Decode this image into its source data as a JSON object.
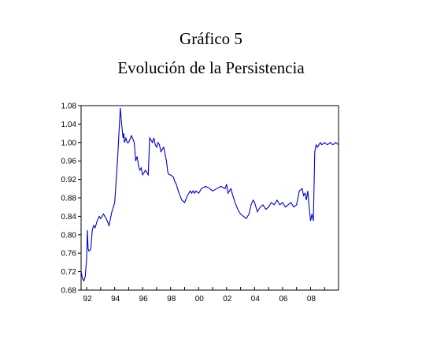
{
  "chart_data": {
    "type": "line",
    "title": "Gráfico 5",
    "subtitle": "Evolución de la Persistencia",
    "xlabel": "",
    "ylabel": "",
    "xlim": [
      1991.6,
      2010.0
    ],
    "ylim": [
      0.68,
      1.08
    ],
    "x_tick_labels": [
      "92",
      "94",
      "96",
      "98",
      "00",
      "02",
      "04",
      "06",
      "08"
    ],
    "x_tick_values": [
      1992,
      1994,
      1996,
      1998,
      2000,
      2002,
      2004,
      2006,
      2008
    ],
    "y_tick_labels": [
      "0.68",
      "0.72",
      "0.76",
      "0.80",
      "0.84",
      "0.88",
      "0.92",
      "0.96",
      "1.00",
      "1.04",
      "1.08"
    ],
    "y_tick_values": [
      0.68,
      0.72,
      0.76,
      0.8,
      0.84,
      0.88,
      0.92,
      0.96,
      1.0,
      1.04,
      1.08
    ],
    "grid": false,
    "line_color": "#0000cc",
    "series": [
      {
        "x": [
          1991.6,
          1991.7,
          1991.8,
          1991.9,
          1992.0,
          1992.05,
          1992.1,
          1992.15,
          1992.2,
          1992.3,
          1992.4,
          1992.5,
          1992.6,
          1992.75,
          1992.9,
          1993.0,
          1993.2,
          1993.4,
          1993.6,
          1993.8,
          1994.0,
          1994.2,
          1994.4,
          1994.5,
          1994.6,
          1994.65,
          1994.7,
          1994.75,
          1994.8,
          1994.9,
          1995.0,
          1995.2,
          1995.4,
          1995.5,
          1995.6,
          1995.7,
          1995.8,
          1995.9,
          1996.0,
          1996.2,
          1996.3,
          1996.4,
          1996.5,
          1996.6,
          1996.7,
          1996.8,
          1996.9,
          1997.0,
          1997.1,
          1997.2,
          1997.3,
          1997.4,
          1997.5,
          1997.7,
          1997.8,
          1997.9,
          1998.0,
          1998.2,
          1998.3,
          1998.4,
          1998.6,
          1998.8,
          1999.0,
          1999.2,
          1999.4,
          1999.5,
          1999.6,
          1999.7,
          1999.8,
          2000.0,
          2000.2,
          2000.5,
          2000.8,
          2001.0,
          2001.3,
          2001.6,
          2001.9,
          2002.0,
          2002.1,
          2002.2,
          2002.3,
          2002.4,
          2002.6,
          2002.8,
          2003.0,
          2003.2,
          2003.4,
          2003.6,
          2003.75,
          2003.9,
          2004.0,
          2004.1,
          2004.2,
          2004.3,
          2004.4,
          2004.6,
          2004.8,
          2005.0,
          2005.2,
          2005.4,
          2005.6,
          2005.8,
          2006.0,
          2006.2,
          2006.4,
          2006.6,
          2006.8,
          2007.0,
          2007.2,
          2007.4,
          2007.5,
          2007.6,
          2007.7,
          2007.8,
          2007.9,
          2008.0,
          2008.1,
          2008.2,
          2008.3,
          2008.4,
          2008.5,
          2008.6,
          2008.7,
          2008.8,
          2009.0,
          2009.2,
          2009.4,
          2009.6,
          2009.8,
          2010.0
        ],
        "y": [
          0.72,
          0.705,
          0.7,
          0.71,
          0.75,
          0.81,
          0.77,
          0.765,
          0.765,
          0.77,
          0.81,
          0.82,
          0.815,
          0.83,
          0.84,
          0.835,
          0.845,
          0.835,
          0.82,
          0.85,
          0.87,
          0.96,
          1.075,
          1.04,
          1.01,
          1.02,
          1.0,
          1.005,
          1.01,
          1.0,
          1.0,
          1.015,
          1.0,
          0.96,
          0.97,
          0.95,
          0.94,
          0.945,
          0.93,
          0.94,
          0.935,
          0.93,
          1.01,
          1.005,
          1.0,
          1.01,
          0.995,
          0.99,
          1.0,
          0.995,
          0.98,
          0.985,
          0.99,
          0.96,
          0.935,
          0.93,
          0.93,
          0.925,
          0.915,
          0.91,
          0.89,
          0.875,
          0.87,
          0.885,
          0.895,
          0.89,
          0.895,
          0.89,
          0.895,
          0.89,
          0.9,
          0.905,
          0.9,
          0.895,
          0.9,
          0.905,
          0.9,
          0.91,
          0.89,
          0.895,
          0.9,
          0.89,
          0.87,
          0.855,
          0.845,
          0.84,
          0.835,
          0.845,
          0.865,
          0.875,
          0.87,
          0.86,
          0.85,
          0.855,
          0.86,
          0.865,
          0.855,
          0.86,
          0.87,
          0.865,
          0.875,
          0.865,
          0.87,
          0.86,
          0.865,
          0.87,
          0.86,
          0.865,
          0.895,
          0.9,
          0.885,
          0.89,
          0.875,
          0.895,
          0.86,
          0.83,
          0.845,
          0.83,
          0.98,
          0.995,
          0.99,
          0.995,
          1.0,
          0.995,
          1.0,
          0.995,
          1.0,
          0.995,
          1.0,
          0.995
        ]
      }
    ]
  }
}
